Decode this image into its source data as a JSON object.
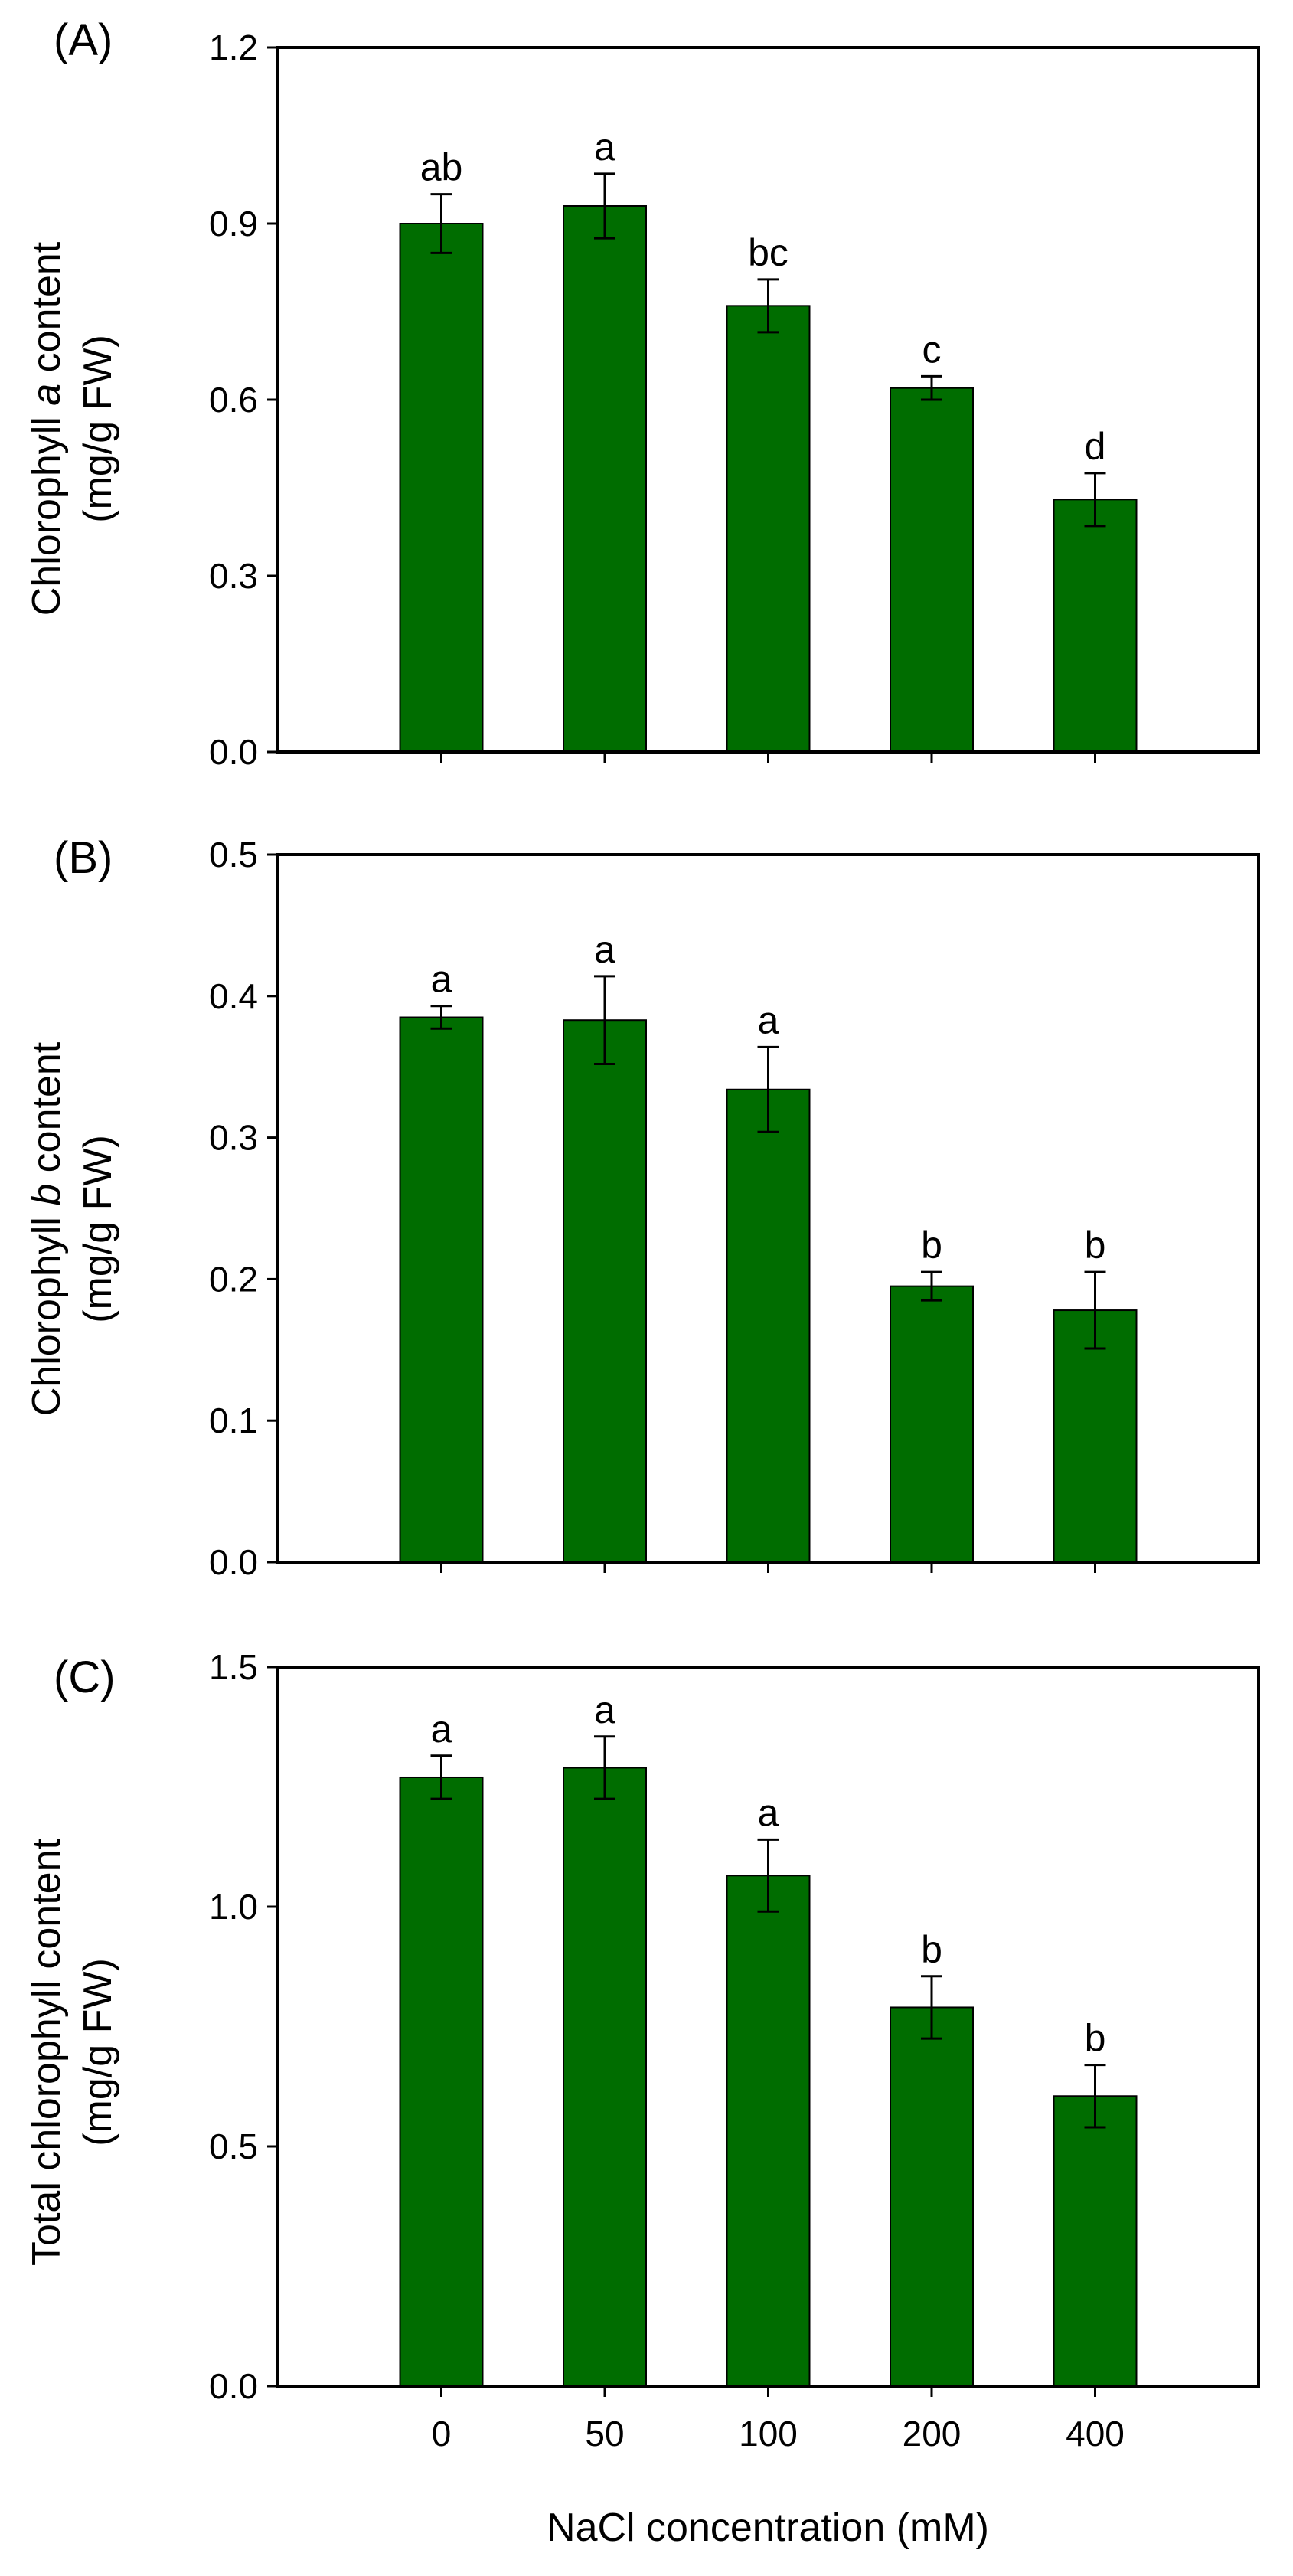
{
  "chart_data": [
    {
      "type": "bar",
      "panel_label": "(A)",
      "categories": [
        "0",
        "50",
        "100",
        "200",
        "400"
      ],
      "values": [
        0.9,
        0.93,
        0.76,
        0.62,
        0.43
      ],
      "errors": [
        0.05,
        0.055,
        0.045,
        0.02,
        0.045
      ],
      "significance": [
        "ab",
        "a",
        "bc",
        "c",
        "d"
      ],
      "ylabel_pre": "Chlorophyll ",
      "ylabel_italic": "a",
      "ylabel_post": " content",
      "ylabel_units": "(mg/g FW)",
      "ylim": [
        0,
        1.2
      ],
      "yticks": [
        0.0,
        0.3,
        0.6,
        0.9,
        1.2
      ],
      "ytick_labels": [
        "0.0",
        "0.3",
        "0.6",
        "0.9",
        "1.2"
      ],
      "xlabel": "",
      "show_xtick_labels": false,
      "bar_color": "#006d00"
    },
    {
      "type": "bar",
      "panel_label": "(B)",
      "categories": [
        "0",
        "50",
        "100",
        "200",
        "400"
      ],
      "values": [
        0.385,
        0.383,
        0.334,
        0.195,
        0.178
      ],
      "errors": [
        0.008,
        0.031,
        0.03,
        0.01,
        0.027
      ],
      "significance": [
        "a",
        "a",
        "a",
        "b",
        "b"
      ],
      "ylabel_pre": "Chlorophyll ",
      "ylabel_italic": "b",
      "ylabel_post": " content",
      "ylabel_units": "(mg/g FW)",
      "ylim": [
        0,
        0.5
      ],
      "yticks": [
        0.0,
        0.1,
        0.2,
        0.3,
        0.4,
        0.5
      ],
      "ytick_labels": [
        "0.0",
        "0.1",
        "0.2",
        "0.3",
        "0.4",
        "0.5"
      ],
      "xlabel": "",
      "show_xtick_labels": false,
      "bar_color": "#006d00"
    },
    {
      "type": "bar",
      "panel_label": "(C)",
      "categories": [
        "0",
        "50",
        "100",
        "200",
        "400"
      ],
      "values": [
        1.27,
        1.29,
        1.065,
        0.79,
        0.605
      ],
      "errors": [
        0.045,
        0.065,
        0.075,
        0.065,
        0.065
      ],
      "significance": [
        "a",
        "a",
        "a",
        "b",
        "b"
      ],
      "ylabel_pre": "Total chlorophyll content",
      "ylabel_italic": "",
      "ylabel_post": "",
      "ylabel_units": "(mg/g FW)",
      "ylim": [
        0,
        1.5
      ],
      "yticks": [
        0.0,
        0.5,
        1.0,
        1.5
      ],
      "ytick_labels": [
        "0.0",
        "0.5",
        "1.0",
        "1.5"
      ],
      "xlabel": "NaCl concentration (mM)",
      "show_xtick_labels": true,
      "bar_color": "#006d00"
    }
  ]
}
